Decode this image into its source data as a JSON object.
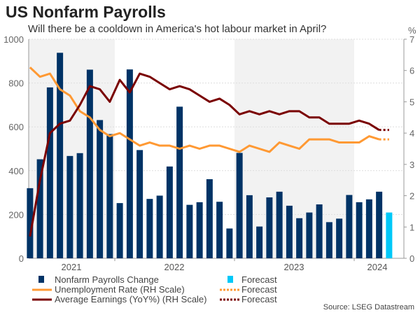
{
  "title": "US Nonfarm Payrolls",
  "subtitle": "Will there be a cooldown in America's hot labour market in April?",
  "source": "Source: LSEG Datastream",
  "colors": {
    "bars": "#003366",
    "bar_forecast": "#00C8F8",
    "unemployment": "#FF9933",
    "earnings": "#7A0000",
    "shade": "#F2F2F2",
    "axis": "#999999"
  },
  "chart_data": {
    "type": "bar+line",
    "title": "US Nonfarm Payrolls",
    "categories": [
      "Apr 2021",
      "May 2021",
      "Jun 2021",
      "Jul 2021",
      "Aug 2021",
      "Sep 2021",
      "Oct 2021",
      "Nov 2021",
      "Dec 2021",
      "Jan 2022",
      "Feb 2022",
      "Mar 2022",
      "Apr 2022",
      "May 2022",
      "Jun 2022",
      "Jul 2022",
      "Aug 2022",
      "Sep 2022",
      "Oct 2022",
      "Nov 2022",
      "Dec 2022",
      "Jan 2023",
      "Feb 2023",
      "Mar 2023",
      "Apr 2023",
      "May 2023",
      "Jun 2023",
      "Jul 2023",
      "Aug 2023",
      "Sep 2023",
      "Oct 2023",
      "Nov 2023",
      "Dec 2023",
      "Jan 2024",
      "Feb 2024",
      "Mar 2024",
      "Apr 2024"
    ],
    "x_tick_labels": [
      "2021",
      "2022",
      "2023",
      "2024"
    ],
    "left_axis": {
      "ylim": [
        0,
        1000
      ],
      "ticks": [
        "0",
        "200",
        "400",
        "600",
        "800",
        "1000"
      ]
    },
    "right_axis": {
      "label": "%",
      "ylim": [
        0,
        7
      ],
      "ticks": [
        "0",
        "1",
        "2",
        "3",
        "4",
        "5",
        "6",
        "7"
      ]
    },
    "forecast_from_index": 36,
    "series": [
      {
        "name": "Nonfarm Payrolls Change",
        "type": "bar",
        "axis": "left",
        "values": [
          320,
          452,
          780,
          938,
          467,
          480,
          861,
          631,
          567,
          252,
          862,
          494,
          271,
          286,
          419,
          692,
          244,
          256,
          361,
          258,
          136,
          481,
          288,
          145,
          278,
          304,
          240,
          183,
          209,
          246,
          165,
          181,
          289,
          256,
          269,
          304,
          209
        ]
      },
      {
        "name": "Unemployment Rate (RH Scale)",
        "type": "line",
        "axis": "right",
        "values": [
          6.1,
          5.8,
          5.9,
          5.4,
          5.2,
          4.7,
          4.5,
          4.1,
          3.9,
          4.0,
          3.8,
          3.6,
          3.7,
          3.6,
          3.6,
          3.5,
          3.6,
          3.5,
          3.6,
          3.6,
          3.5,
          3.4,
          3.6,
          3.5,
          3.4,
          3.7,
          3.6,
          3.5,
          3.8,
          3.8,
          3.8,
          3.7,
          3.7,
          3.7,
          3.9,
          3.8,
          3.8
        ]
      },
      {
        "name": "Average Earnings (YoY%) (RH Scale)",
        "type": "line",
        "axis": "right",
        "values": [
          0.7,
          2.5,
          4.0,
          4.3,
          4.4,
          4.9,
          5.5,
          5.4,
          5.0,
          5.7,
          5.3,
          5.9,
          5.8,
          5.6,
          5.4,
          5.5,
          5.4,
          5.2,
          5.0,
          5.1,
          4.9,
          4.6,
          4.7,
          4.6,
          4.7,
          4.6,
          4.7,
          4.7,
          4.5,
          4.5,
          4.3,
          4.3,
          4.3,
          4.4,
          4.3,
          4.1,
          4.1
        ]
      }
    ],
    "legend": {
      "placement": "bottom",
      "entries": [
        "Nonfarm Payrolls Change",
        "Forecast",
        "Unemployment Rate (RH Scale)",
        "Forecast",
        "Average Earnings (YoY%) (RH Scale)",
        "Forecast"
      ]
    }
  }
}
